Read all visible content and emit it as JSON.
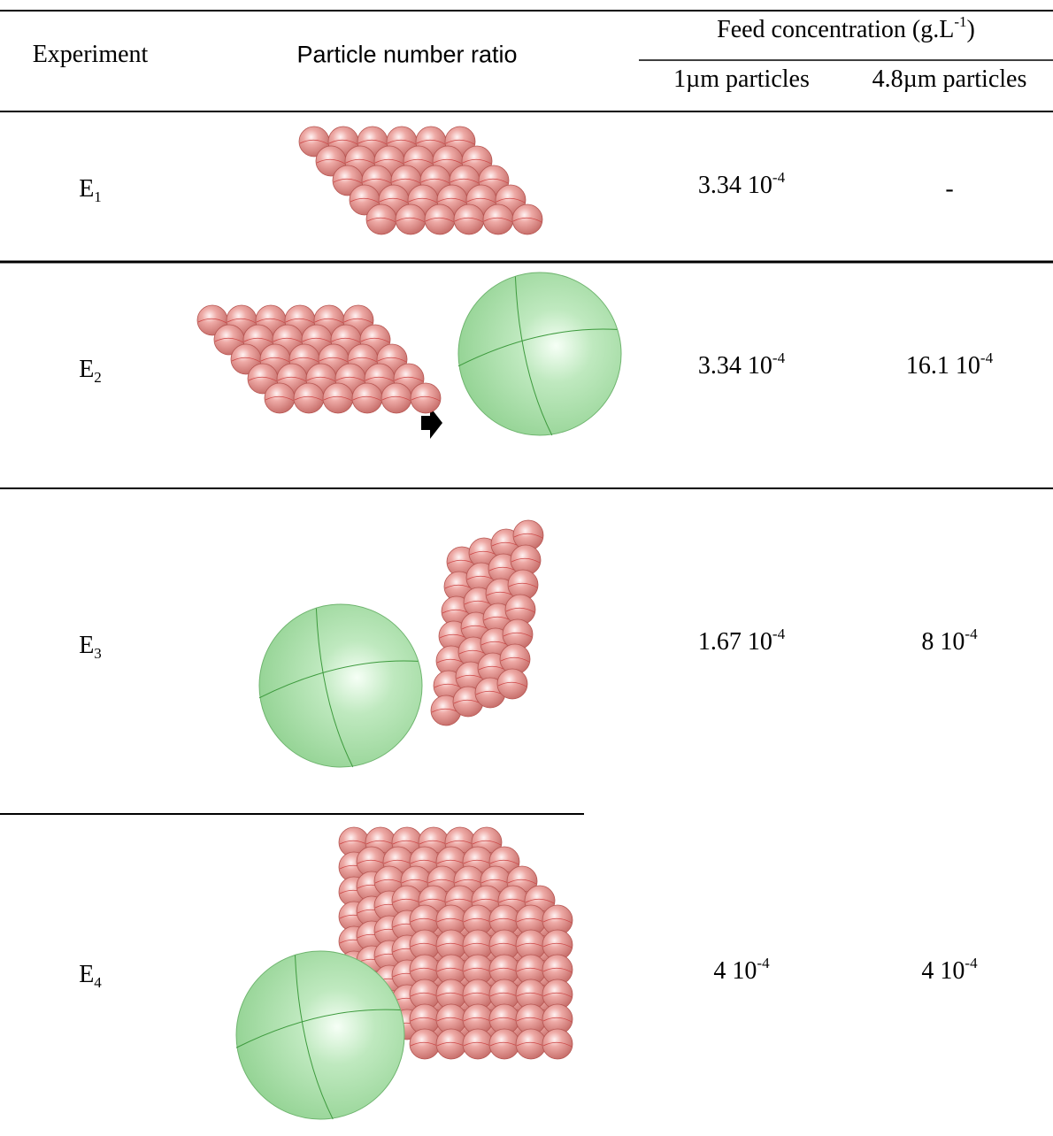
{
  "header": {
    "experiment": "Experiment",
    "ratio": "Particle number ratio",
    "feed": {
      "text": "Feed concentration (g.L",
      "sup": "-1",
      "close": ")"
    },
    "col_1um": "1µm particles",
    "col_48um": "4.8µm particles"
  },
  "rows": [
    {
      "label": "E",
      "sub": "1",
      "c1": {
        "base": "3.34 10",
        "sup": "-4"
      },
      "c48": "-"
    },
    {
      "label": "E",
      "sub": "2",
      "c1": {
        "base": "3.34 10",
        "sup": "-4"
      },
      "c48": {
        "base": "16.1 10",
        "sup": "-4"
      }
    },
    {
      "label": "E",
      "sub": "3",
      "c1": {
        "base": "1.67 10",
        "sup": "-4"
      },
      "c48": {
        "base": "8 10",
        "sup": "-4"
      }
    },
    {
      "label": "E",
      "sub": "4",
      "c1": {
        "base": "4 10",
        "sup": "-4"
      },
      "c48": {
        "base": "4 10",
        "sup": "-4"
      }
    }
  ]
}
